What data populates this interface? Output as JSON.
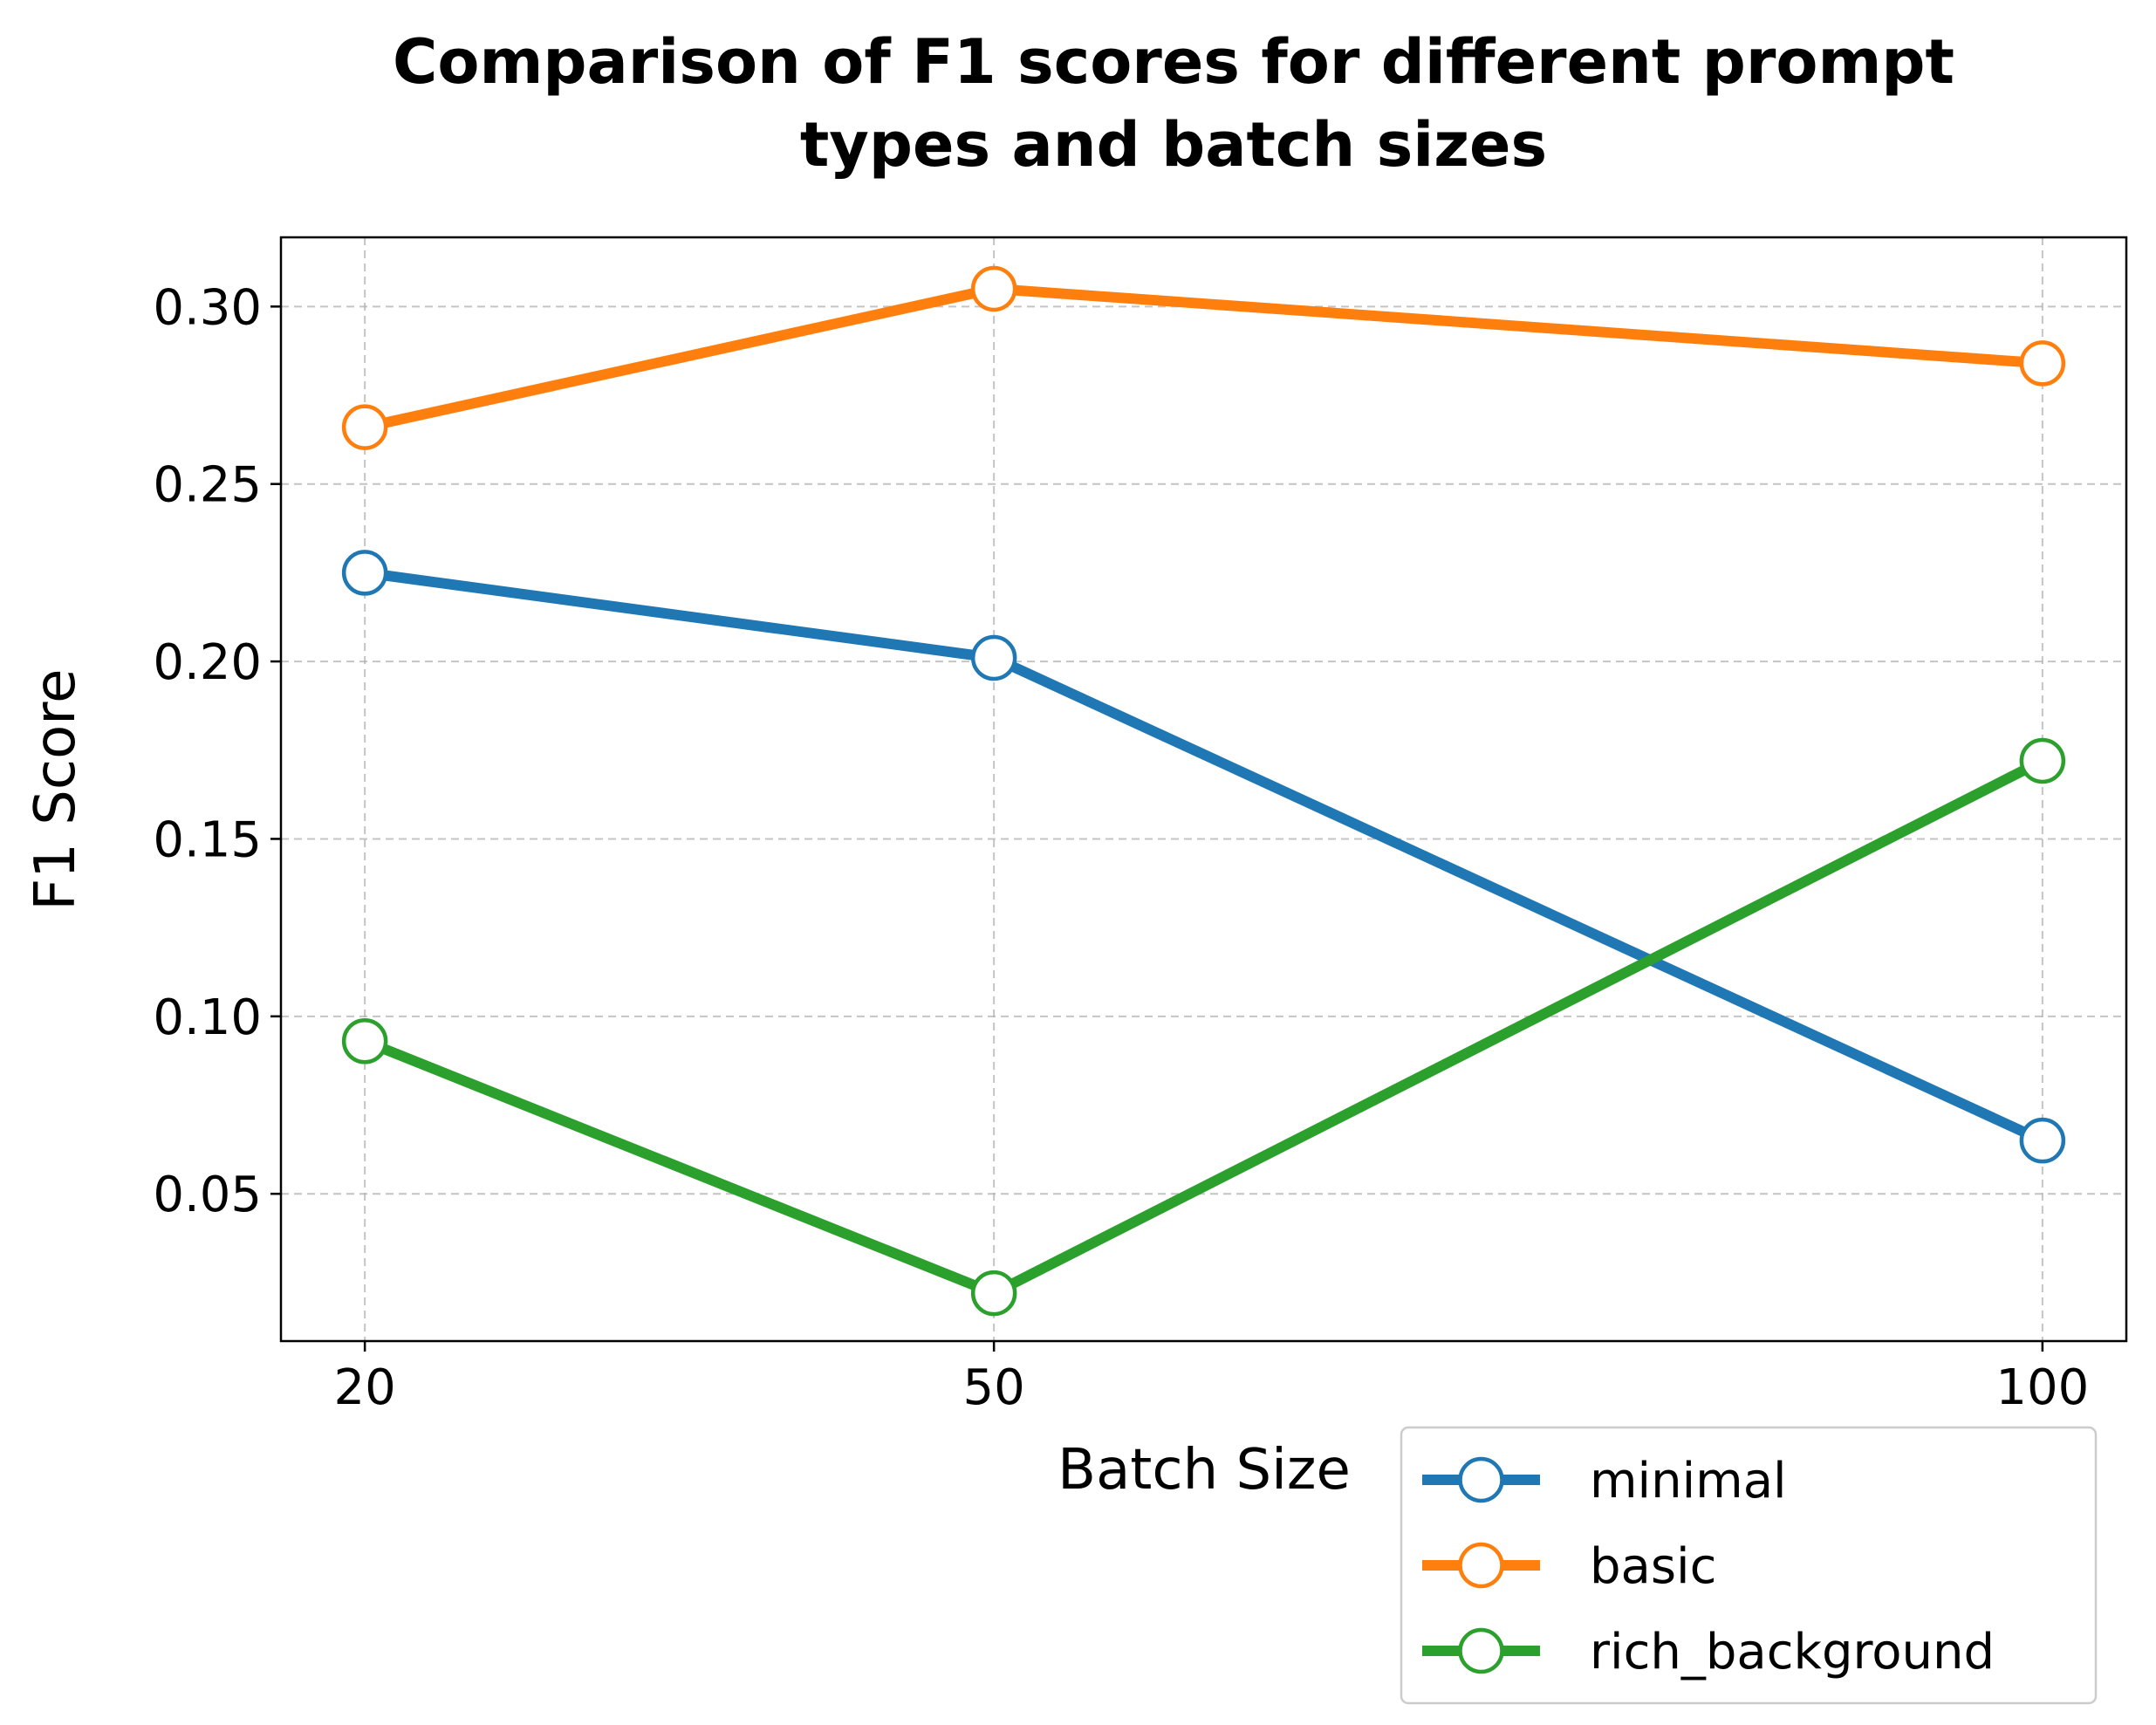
{
  "chart_data": {
    "type": "line",
    "title_lines": [
      "Comparison of F1 scores for different prompt",
      "types and batch sizes"
    ],
    "xlabel": "Batch Size",
    "ylabel": "F1 Score",
    "x": [
      20,
      50,
      100
    ],
    "x_tick_labels": [
      "20",
      "50",
      "100"
    ],
    "xlim": [
      16,
      104
    ],
    "ylim": [
      0.0085,
      0.3195
    ],
    "y_ticks": [
      0.05,
      0.1,
      0.15,
      0.2,
      0.25,
      0.3
    ],
    "y_tick_labels": [
      "0.05",
      "0.10",
      "0.15",
      "0.20",
      "0.25",
      "0.30"
    ],
    "grid": true,
    "legend_position": "lower-right, outside plot",
    "series": [
      {
        "name": "minimal",
        "color": "#1f77b4",
        "values": [
          0.225,
          0.201,
          0.065
        ]
      },
      {
        "name": "basic",
        "color": "#ff7f0e",
        "values": [
          0.266,
          0.305,
          0.284
        ]
      },
      {
        "name": "rich_background",
        "color": "#2ca02c",
        "values": [
          0.093,
          0.022,
          0.172
        ]
      }
    ]
  }
}
